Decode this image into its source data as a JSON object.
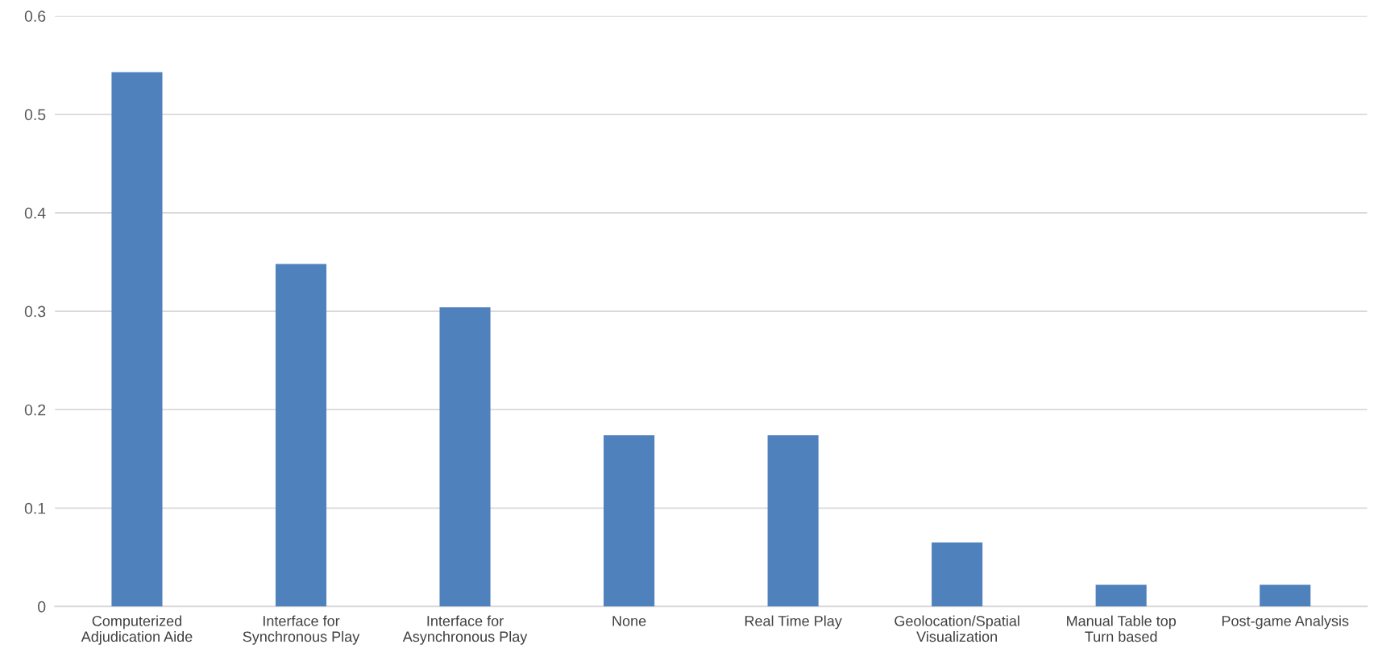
{
  "chart_data": {
    "type": "bar",
    "categories": [
      "Computerized\nAdjudication Aide",
      "Interface for\nSynchronous Play",
      "Interface for\nAsynchronous Play",
      "None",
      "Real Time Play",
      "Geolocation/Spatial\nVisualization",
      "Manual Table top\nTurn based",
      "Post-game Analysis"
    ],
    "values": [
      0.543,
      0.348,
      0.304,
      0.174,
      0.174,
      0.065,
      0.022,
      0.022
    ],
    "color": "#4f81bd",
    "ylim": [
      0,
      0.6
    ],
    "yticks": [
      0,
      0.1,
      0.2,
      0.3,
      0.4,
      0.5,
      0.6
    ],
    "grid": "y"
  }
}
